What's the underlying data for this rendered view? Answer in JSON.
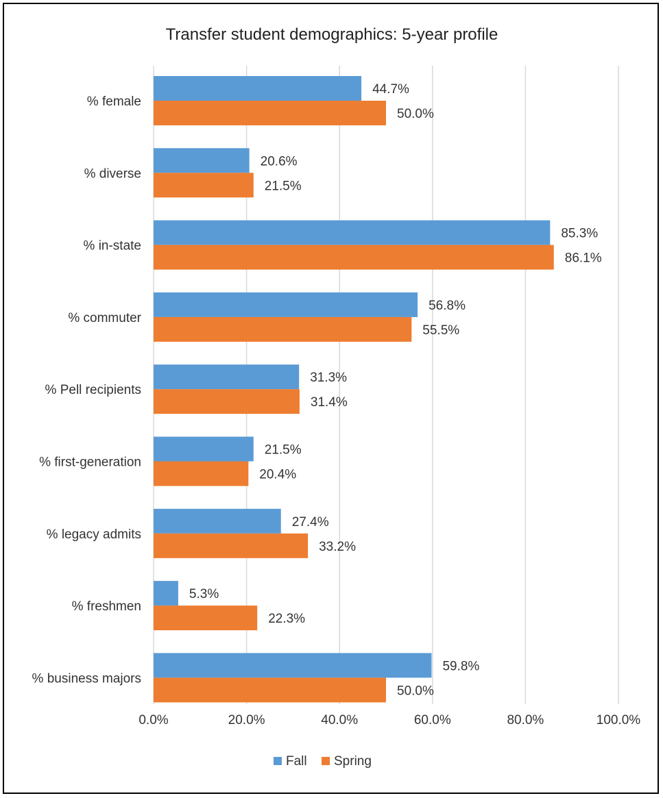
{
  "chart_data": {
    "type": "bar",
    "orientation": "horizontal",
    "title": "Transfer student demographics: 5-year profile",
    "categories": [
      "% female",
      "% diverse",
      "% in-state",
      "% commuter",
      "% Pell recipients",
      "% first-generation",
      "% legacy admits",
      "% freshmen",
      "% business majors"
    ],
    "series": [
      {
        "name": "Fall",
        "color": "#5b9bd5",
        "values": [
          44.7,
          20.6,
          85.3,
          56.8,
          31.3,
          21.5,
          27.4,
          5.3,
          59.8
        ],
        "labels": [
          "44.7%",
          "20.6%",
          "85.3%",
          "56.8%",
          "31.3%",
          "21.5%",
          "27.4%",
          "5.3%",
          "59.8%"
        ]
      },
      {
        "name": "Spring",
        "color": "#ed7d31",
        "values": [
          50.0,
          21.5,
          86.1,
          55.5,
          31.4,
          20.4,
          33.2,
          22.3,
          50.0
        ],
        "labels": [
          "50.0%",
          "21.5%",
          "86.1%",
          "55.5%",
          "31.4%",
          "20.4%",
          "33.2%",
          "22.3%",
          "50.0%"
        ]
      }
    ],
    "xlim": [
      0,
      100
    ],
    "xticks": [
      "0.0%",
      "20.0%",
      "40.0%",
      "60.0%",
      "80.0%",
      "100.0%"
    ],
    "xlabel": "",
    "ylabel": "",
    "grid": true,
    "gridline_color": "#d9d9d9",
    "legend": "bottom"
  }
}
